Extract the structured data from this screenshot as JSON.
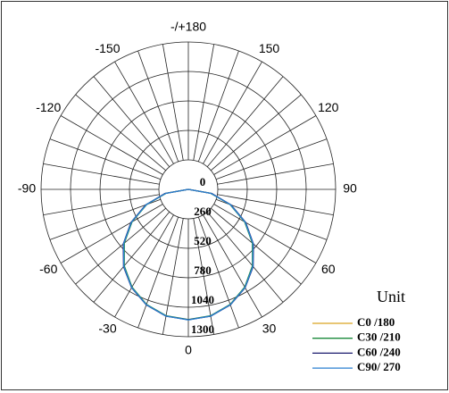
{
  "chart_data": {
    "type": "polar",
    "theta_ticks": [
      {
        "value": 180,
        "label": "-/+180"
      },
      -150,
      150,
      -120,
      120,
      -90,
      90,
      -60,
      60,
      -30,
      30,
      0
    ],
    "rlim": [
      0,
      1300
    ],
    "rticks": [
      0,
      260,
      520,
      780,
      1040,
      1300
    ],
    "x": [
      -90,
      -80,
      -70,
      -60,
      -50,
      -40,
      -30,
      -20,
      -10,
      0,
      10,
      20,
      30,
      40,
      50,
      60,
      70,
      80,
      90
    ],
    "legend_title": "Unit",
    "series": [
      {
        "name": "C0 /180",
        "color": "#d9a520",
        "values": [
          0,
          205,
          395,
          578,
          742,
          884,
          998,
          1082,
          1134,
          1150,
          1134,
          1082,
          998,
          884,
          742,
          578,
          395,
          205,
          0
        ]
      },
      {
        "name": "C30 /210",
        "color": "#1a8a3a",
        "values": [
          0,
          200,
          392,
          574,
          738,
          880,
          995,
          1080,
          1132,
          1148,
          1132,
          1080,
          995,
          880,
          738,
          574,
          392,
          200,
          0
        ]
      },
      {
        "name": "C60 /240",
        "color": "#1a1a6e",
        "values": [
          0,
          210,
          402,
          585,
          750,
          890,
          1002,
          1085,
          1136,
          1150,
          1136,
          1085,
          1002,
          890,
          750,
          585,
          402,
          210,
          0
        ]
      },
      {
        "name": "C90/ 270",
        "color": "#2a7fd0",
        "values": [
          0,
          203,
          396,
          580,
          745,
          886,
          1000,
          1083,
          1135,
          1152,
          1135,
          1083,
          1000,
          886,
          745,
          580,
          396,
          203,
          0
        ]
      }
    ]
  }
}
